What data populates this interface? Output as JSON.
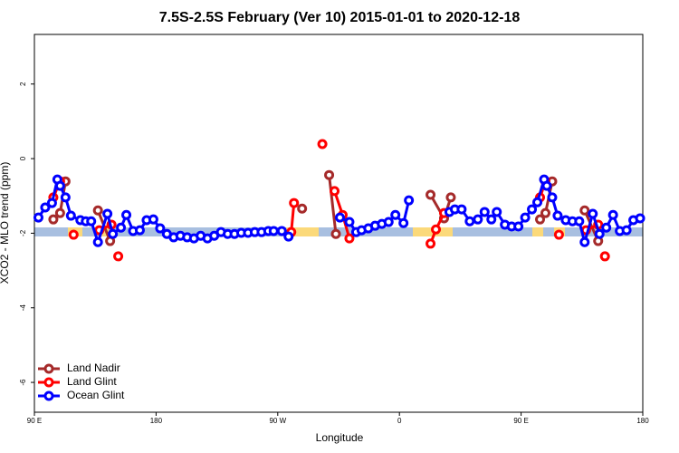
{
  "chart_data": {
    "type": "line",
    "title": "7.5S-2.5S February (Ver 10)   2015-01-01 to 2020-12-18",
    "x_label": "Longitude",
    "y_label": "XCO2 - MLO trend (ppm)",
    "xlim": [
      90,
      540
    ],
    "xticks": [
      {
        "value": 90,
        "label": "90 E"
      },
      {
        "value": 180,
        "label": "180"
      },
      {
        "value": 270,
        "label": "90 W"
      },
      {
        "value": 360,
        "label": "0"
      },
      {
        "value": 450,
        "label": "90 E"
      },
      {
        "value": 540,
        "label": "180"
      }
    ],
    "ylim": [
      -6.8,
      3.33
    ],
    "yticks": [
      -6,
      -4,
      -2,
      0,
      2
    ],
    "legend": "bottom-left",
    "series": [
      {
        "name": "Land Nadir",
        "color": "#a52a2a",
        "x": [
          104,
          109,
          113,
          null,
          137,
          146,
          null,
          288,
          null,
          308,
          313,
          null,
          383,
          393,
          398,
          null,
          464,
          468,
          473,
          null,
          497,
          507
        ],
        "values": [
          -1.63,
          -1.46,
          -0.61,
          null,
          -1.39,
          -2.21,
          null,
          -1.34,
          null,
          -0.44,
          -2.02,
          null,
          -0.97,
          -1.6,
          -1.04,
          null,
          -1.63,
          -1.46,
          -0.61,
          null,
          -1.39,
          -2.21
        ]
      },
      {
        "name": "Land Glint",
        "color": "#ff0000",
        "x": [
          104,
          109,
          null,
          119,
          null,
          138,
          147,
          null,
          152,
          null,
          280,
          282,
          null,
          303,
          null,
          312,
          318,
          323,
          null,
          383,
          387,
          393,
          null,
          464,
          468,
          null,
          478,
          null,
          498,
          507,
          null,
          512
        ],
        "values": [
          -1.04,
          -0.61,
          null,
          -2.04,
          null,
          -1.92,
          -1.77,
          null,
          -2.62,
          null,
          -1.97,
          -1.19,
          null,
          0.39,
          null,
          -0.87,
          -1.51,
          -2.14,
          null,
          -2.28,
          -1.9,
          -1.46,
          null,
          -1.04,
          -0.61,
          null,
          -2.04,
          null,
          -1.92,
          -1.77,
          null,
          -2.62
        ]
      },
      {
        "name": "Ocean Glint",
        "color": "#0000ff",
        "x": [
          93,
          98,
          103,
          107,
          109,
          113,
          117,
          124,
          128,
          132,
          137,
          144,
          148,
          154,
          158,
          163,
          168,
          173,
          178,
          183,
          188,
          193,
          198,
          203,
          208,
          213,
          218,
          223,
          228,
          233,
          238,
          243,
          248,
          253,
          258,
          263,
          267,
          273,
          278,
          null,
          316,
          323,
          328,
          332,
          337,
          342,
          347,
          352,
          357,
          363,
          367,
          null,
          397,
          401,
          406,
          412,
          418,
          423,
          428,
          432,
          438,
          443,
          448,
          453,
          458,
          462,
          467,
          469,
          473,
          477,
          483,
          488,
          493,
          497,
          503,
          508,
          513,
          518,
          523,
          528,
          533,
          538
        ],
        "values": [
          -1.58,
          -1.31,
          -1.19,
          -0.56,
          -0.73,
          -1.04,
          -1.53,
          -1.65,
          -1.68,
          -1.68,
          -2.24,
          -1.48,
          -2.02,
          -1.85,
          -1.51,
          -1.94,
          -1.92,
          -1.65,
          -1.63,
          -1.87,
          -2.02,
          -2.11,
          -2.07,
          -2.11,
          -2.14,
          -2.07,
          -2.14,
          -2.07,
          -1.97,
          -2.02,
          -2.02,
          -1.99,
          -1.99,
          -1.97,
          -1.97,
          -1.94,
          -1.94,
          -1.94,
          -2.09,
          null,
          -1.58,
          -1.7,
          -1.97,
          -1.92,
          -1.87,
          -1.8,
          -1.75,
          -1.7,
          -1.51,
          -1.73,
          -1.12,
          null,
          -1.43,
          -1.36,
          -1.36,
          -1.68,
          -1.63,
          -1.43,
          -1.63,
          -1.43,
          -1.77,
          -1.82,
          -1.82,
          -1.58,
          -1.36,
          -1.17,
          -0.56,
          -0.73,
          -1.04,
          -1.53,
          -1.65,
          -1.68,
          -1.68,
          -2.24,
          -1.48,
          -2.02,
          -1.85,
          -1.51,
          -1.94,
          -1.92,
          -1.65,
          -1.6
        ]
      }
    ]
  }
}
